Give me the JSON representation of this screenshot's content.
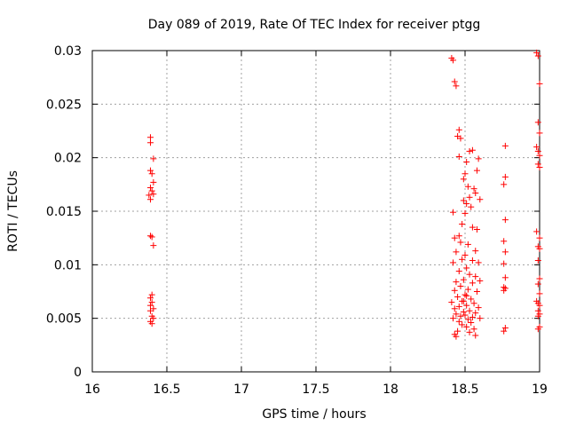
{
  "chart_data": {
    "type": "scatter",
    "title": "Day 089 of 2019, Rate Of TEC Index for receiver ptgg",
    "xlabel": "GPS time / hours",
    "ylabel": "ROTI / TECUs",
    "xlim": [
      16,
      19
    ],
    "ylim": [
      0,
      0.03
    ],
    "xticks": [
      16,
      16.5,
      17,
      17.5,
      18,
      18.5,
      19
    ],
    "xtick_labels": [
      "16",
      "16.5",
      "17",
      "17.5",
      "18",
      "18.5",
      "19"
    ],
    "yticks": [
      0,
      0.005,
      0.01,
      0.015,
      0.02,
      0.025,
      0.03
    ],
    "ytick_labels": [
      "0",
      "0.005",
      "0.01",
      "0.015",
      "0.02",
      "0.025",
      "0.03"
    ],
    "grid": true,
    "marker": "+",
    "color": "#ff0000",
    "series": [
      {
        "name": "ROTI",
        "points": [
          [
            16.39,
            0.0219
          ],
          [
            16.39,
            0.0214
          ],
          [
            16.41,
            0.0199
          ],
          [
            16.39,
            0.0188
          ],
          [
            16.4,
            0.0185
          ],
          [
            16.41,
            0.0177
          ],
          [
            16.39,
            0.0172
          ],
          [
            16.4,
            0.0169
          ],
          [
            16.38,
            0.0165
          ],
          [
            16.41,
            0.0166
          ],
          [
            16.39,
            0.0161
          ],
          [
            16.39,
            0.0127
          ],
          [
            16.4,
            0.0126
          ],
          [
            16.41,
            0.0118
          ],
          [
            16.4,
            0.0072
          ],
          [
            16.39,
            0.0069
          ],
          [
            16.4,
            0.0065
          ],
          [
            16.39,
            0.0062
          ],
          [
            16.41,
            0.0059
          ],
          [
            16.39,
            0.0057
          ],
          [
            16.4,
            0.0052
          ],
          [
            16.41,
            0.005
          ],
          [
            16.39,
            0.0047
          ],
          [
            16.4,
            0.0045
          ],
          [
            18.41,
            0.0293
          ],
          [
            18.42,
            0.0291
          ],
          [
            18.43,
            0.0271
          ],
          [
            18.44,
            0.0267
          ],
          [
            18.46,
            0.0226
          ],
          [
            18.45,
            0.022
          ],
          [
            18.47,
            0.0218
          ],
          [
            18.46,
            0.0201
          ],
          [
            18.51,
            0.0196
          ],
          [
            18.53,
            0.0206
          ],
          [
            18.55,
            0.0207
          ],
          [
            18.58,
            0.0188
          ],
          [
            18.59,
            0.0199
          ],
          [
            18.5,
            0.0185
          ],
          [
            18.49,
            0.018
          ],
          [
            18.52,
            0.0173
          ],
          [
            18.56,
            0.0171
          ],
          [
            18.57,
            0.0167
          ],
          [
            18.53,
            0.0163
          ],
          [
            18.49,
            0.016
          ],
          [
            18.51,
            0.0157
          ],
          [
            18.54,
            0.0154
          ],
          [
            18.6,
            0.0161
          ],
          [
            18.42,
            0.0149
          ],
          [
            18.5,
            0.0148
          ],
          [
            18.48,
            0.0138
          ],
          [
            18.55,
            0.0135
          ],
          [
            18.58,
            0.0133
          ],
          [
            18.46,
            0.0127
          ],
          [
            18.43,
            0.0125
          ],
          [
            18.47,
            0.0121
          ],
          [
            18.52,
            0.0119
          ],
          [
            18.57,
            0.0113
          ],
          [
            18.44,
            0.0112
          ],
          [
            18.5,
            0.0109
          ],
          [
            18.48,
            0.0105
          ],
          [
            18.55,
            0.0104
          ],
          [
            18.59,
            0.0102
          ],
          [
            18.42,
            0.0102
          ],
          [
            18.51,
            0.0097
          ],
          [
            18.46,
            0.0094
          ],
          [
            18.53,
            0.0091
          ],
          [
            18.57,
            0.0089
          ],
          [
            18.49,
            0.0086
          ],
          [
            18.44,
            0.0084
          ],
          [
            18.55,
            0.0083
          ],
          [
            18.6,
            0.0085
          ],
          [
            18.47,
            0.008
          ],
          [
            18.52,
            0.0077
          ],
          [
            18.43,
            0.0076
          ],
          [
            18.58,
            0.0075
          ],
          [
            18.5,
            0.0072
          ],
          [
            18.45,
            0.007
          ],
          [
            18.54,
            0.0068
          ],
          [
            18.48,
            0.0066
          ],
          [
            18.41,
            0.0065
          ],
          [
            18.56,
            0.0064
          ],
          [
            18.51,
            0.0062
          ],
          [
            18.46,
            0.0061
          ],
          [
            18.59,
            0.006
          ],
          [
            18.43,
            0.0059
          ],
          [
            18.53,
            0.0057
          ],
          [
            18.49,
            0.0056
          ],
          [
            18.57,
            0.0055
          ],
          [
            18.44,
            0.0054
          ],
          [
            18.5,
            0.0053
          ],
          [
            18.47,
            0.0052
          ],
          [
            18.55,
            0.0051
          ],
          [
            18.42,
            0.005
          ],
          [
            18.52,
            0.0049
          ],
          [
            18.6,
            0.005
          ],
          [
            18.46,
            0.0047
          ],
          [
            18.54,
            0.0046
          ],
          [
            18.48,
            0.0044
          ],
          [
            18.51,
            0.0042
          ],
          [
            18.56,
            0.004
          ],
          [
            18.45,
            0.0038
          ],
          [
            18.53,
            0.0037
          ],
          [
            18.43,
            0.0035
          ],
          [
            18.44,
            0.0033
          ],
          [
            18.57,
            0.0034
          ],
          [
            18.49,
            0.0066
          ],
          [
            18.51,
            0.0071
          ],
          [
            18.77,
            0.0211
          ],
          [
            18.77,
            0.0182
          ],
          [
            18.76,
            0.0175
          ],
          [
            18.77,
            0.0142
          ],
          [
            18.76,
            0.0122
          ],
          [
            18.77,
            0.0112
          ],
          [
            18.76,
            0.0101
          ],
          [
            18.77,
            0.0088
          ],
          [
            18.76,
            0.0079
          ],
          [
            18.77,
            0.0078
          ],
          [
            18.76,
            0.0076
          ],
          [
            18.77,
            0.0041
          ],
          [
            18.76,
            0.0038
          ],
          [
            18.98,
            0.0298
          ],
          [
            18.99,
            0.0295
          ],
          [
            19.0,
            0.0269
          ],
          [
            18.99,
            0.0233
          ],
          [
            19.0,
            0.0223
          ],
          [
            18.98,
            0.021
          ],
          [
            18.99,
            0.0206
          ],
          [
            19.0,
            0.0202
          ],
          [
            18.99,
            0.0194
          ],
          [
            19.0,
            0.0191
          ],
          [
            18.98,
            0.0131
          ],
          [
            19.0,
            0.0125
          ],
          [
            18.99,
            0.0117
          ],
          [
            19.0,
            0.0115
          ],
          [
            18.99,
            0.0104
          ],
          [
            19.0,
            0.0087
          ],
          [
            18.99,
            0.0082
          ],
          [
            19.0,
            0.0073
          ],
          [
            18.98,
            0.0066
          ],
          [
            18.99,
            0.0064
          ],
          [
            19.0,
            0.0062
          ],
          [
            18.99,
            0.0057
          ],
          [
            19.0,
            0.0054
          ],
          [
            18.99,
            0.0052
          ],
          [
            19.0,
            0.0042
          ],
          [
            18.99,
            0.004
          ]
        ]
      }
    ]
  }
}
